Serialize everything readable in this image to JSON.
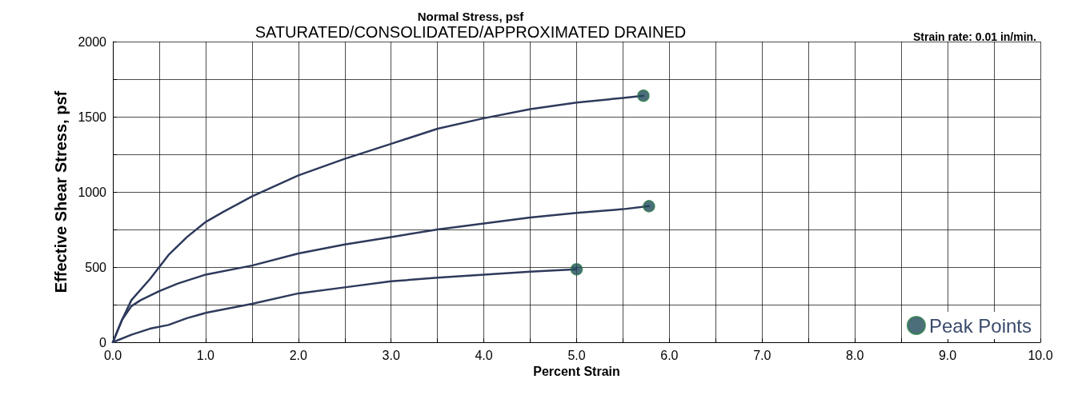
{
  "chart_data": {
    "type": "line",
    "title": "Normal Stress, psf",
    "subtitle": "SATURATED/CONSOLIDATED/APPROXIMATED DRAINED",
    "xlabel": "Percent Strain",
    "ylabel": "Effective Shear Stress, psf",
    "annotations": [
      "Strain rate: 0.01 in/min."
    ],
    "xlim": [
      0,
      10
    ],
    "ylim": [
      0,
      2000
    ],
    "xticks": [
      {
        "value": 0,
        "label": "0.0"
      },
      {
        "value": 0.5,
        "label": null
      },
      {
        "value": 1,
        "label": "1.0"
      },
      {
        "value": 1.5,
        "label": null
      },
      {
        "value": 2,
        "label": "2.0"
      },
      {
        "value": 2.5,
        "label": null
      },
      {
        "value": 3,
        "label": "3.0"
      },
      {
        "value": 3.5,
        "label": null
      },
      {
        "value": 4,
        "label": "4.0"
      },
      {
        "value": 4.5,
        "label": null
      },
      {
        "value": 5,
        "label": "5.0"
      },
      {
        "value": 5.5,
        "label": null
      },
      {
        "value": 6,
        "label": "6.0"
      },
      {
        "value": 6.5,
        "label": null
      },
      {
        "value": 7,
        "label": "7.0"
      },
      {
        "value": 7.5,
        "label": null
      },
      {
        "value": 8,
        "label": "8.0"
      },
      {
        "value": 8.5,
        "label": null
      },
      {
        "value": 9,
        "label": "9.0"
      },
      {
        "value": 9.5,
        "label": null
      },
      {
        "value": 10,
        "label": "10.0"
      }
    ],
    "yticks": [
      0,
      {
        "value": 250,
        "label": null
      },
      500,
      {
        "value": 750,
        "label": null
      },
      1000,
      {
        "value": 1250,
        "label": null
      },
      1500,
      {
        "value": 1750,
        "label": null
      },
      2000
    ],
    "grid": true,
    "legend": "bottom right",
    "marker": "none",
    "line_style": "solid",
    "series": [
      {
        "color": "#2e3a5c",
        "x": [
          0,
          0.1,
          0.2,
          0.4,
          0.6,
          0.8,
          1.0,
          1.2,
          1.5,
          2.0,
          2.5,
          3.0,
          3.5,
          4.0,
          4.5,
          5.0,
          5.5,
          5.72
        ],
        "values": [
          0,
          150,
          280,
          420,
          580,
          700,
          800,
          870,
          970,
          1110,
          1220,
          1320,
          1420,
          1490,
          1550,
          1595,
          1625,
          1640
        ]
      },
      {
        "color": "#2e3a5c",
        "x": [
          0,
          0.1,
          0.2,
          0.3,
          0.5,
          0.7,
          1.0,
          1.5,
          2.0,
          2.5,
          3.0,
          3.5,
          4.0,
          4.5,
          5.0,
          5.5,
          5.78
        ],
        "values": [
          0,
          150,
          240,
          280,
          340,
          390,
          450,
          510,
          590,
          650,
          700,
          750,
          790,
          830,
          860,
          885,
          905
        ]
      },
      {
        "color": "#2e3a5c",
        "x": [
          0,
          0.2,
          0.4,
          0.6,
          0.8,
          1.0,
          1.5,
          2.0,
          2.5,
          3.0,
          3.5,
          4.0,
          4.5,
          5.0
        ],
        "values": [
          0,
          50,
          90,
          115,
          160,
          195,
          255,
          325,
          365,
          405,
          430,
          450,
          470,
          485
        ]
      },
      {
        "type": "scatter",
        "name": "Peak Points",
        "color": "#1f4a5a",
        "marker": "circle",
        "x": [
          5.72,
          5.78,
          5.0
        ],
        "values": [
          1640,
          905,
          485
        ]
      }
    ]
  }
}
